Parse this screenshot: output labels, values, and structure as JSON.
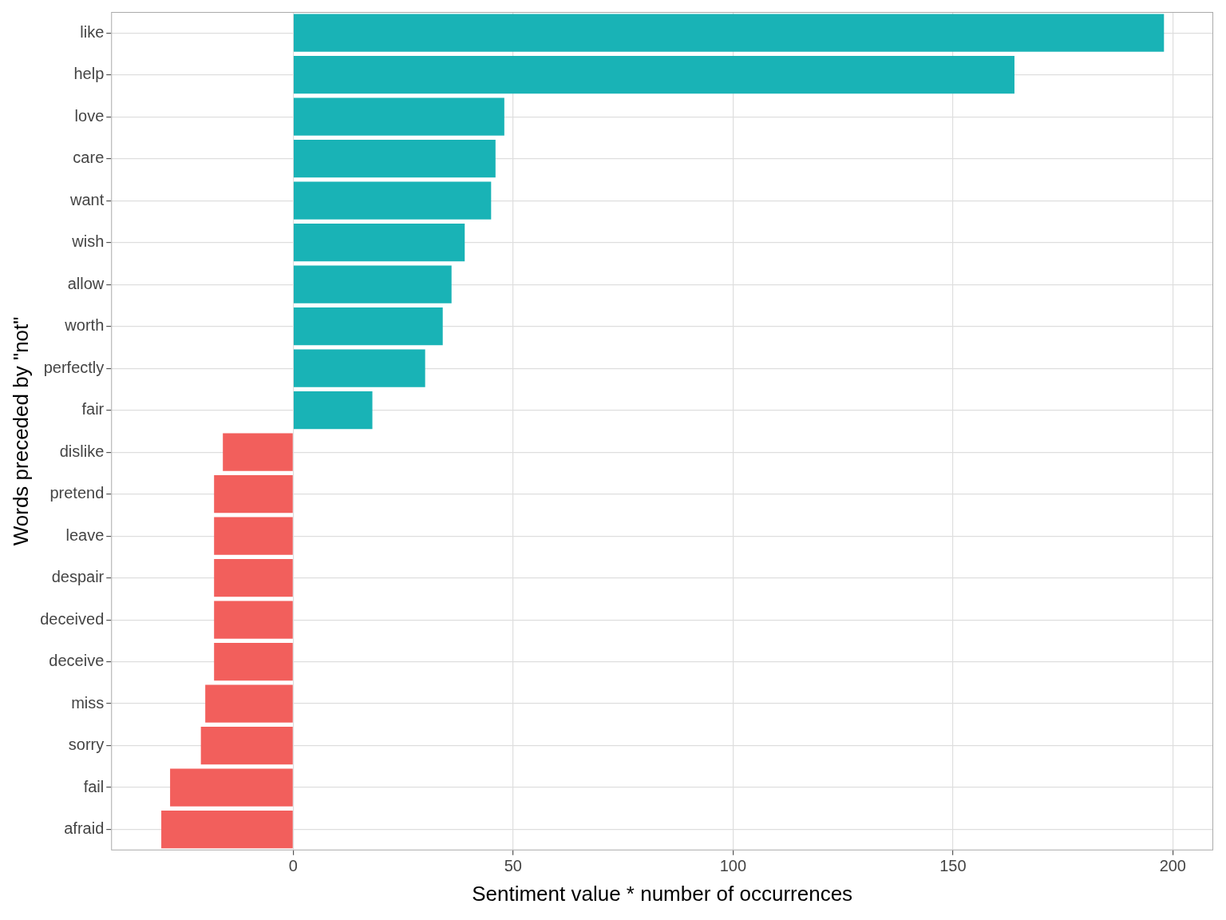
{
  "chart_data": {
    "type": "bar",
    "orientation": "horizontal",
    "x_label": "Sentiment value * number of occurrences",
    "y_label": "Words preceded by \"not\"",
    "categories": [
      "like",
      "help",
      "love",
      "care",
      "want",
      "wish",
      "allow",
      "worth",
      "perfectly",
      "fair",
      "dislike",
      "pretend",
      "leave",
      "despair",
      "deceived",
      "deceive",
      "miss",
      "sorry",
      "fail",
      "afraid"
    ],
    "values": [
      198,
      164,
      48,
      46,
      45,
      39,
      36,
      34,
      30,
      18,
      -16,
      -18,
      -18,
      -18,
      -18,
      -18,
      -20,
      -21,
      -28,
      -30
    ],
    "colors": [
      "#19b3b6",
      "#19b3b6",
      "#19b3b6",
      "#19b3b6",
      "#19b3b6",
      "#19b3b6",
      "#19b3b6",
      "#19b3b6",
      "#19b3b6",
      "#19b3b6",
      "#f25f5c",
      "#f25f5c",
      "#f25f5c",
      "#f25f5c",
      "#f25f5c",
      "#f25f5c",
      "#f25f5c",
      "#f25f5c",
      "#f25f5c",
      "#f25f5c"
    ],
    "xlim": [
      -41.4,
      209.2
    ],
    "xticks": [
      0,
      50,
      100,
      150,
      200
    ],
    "grid": true
  }
}
